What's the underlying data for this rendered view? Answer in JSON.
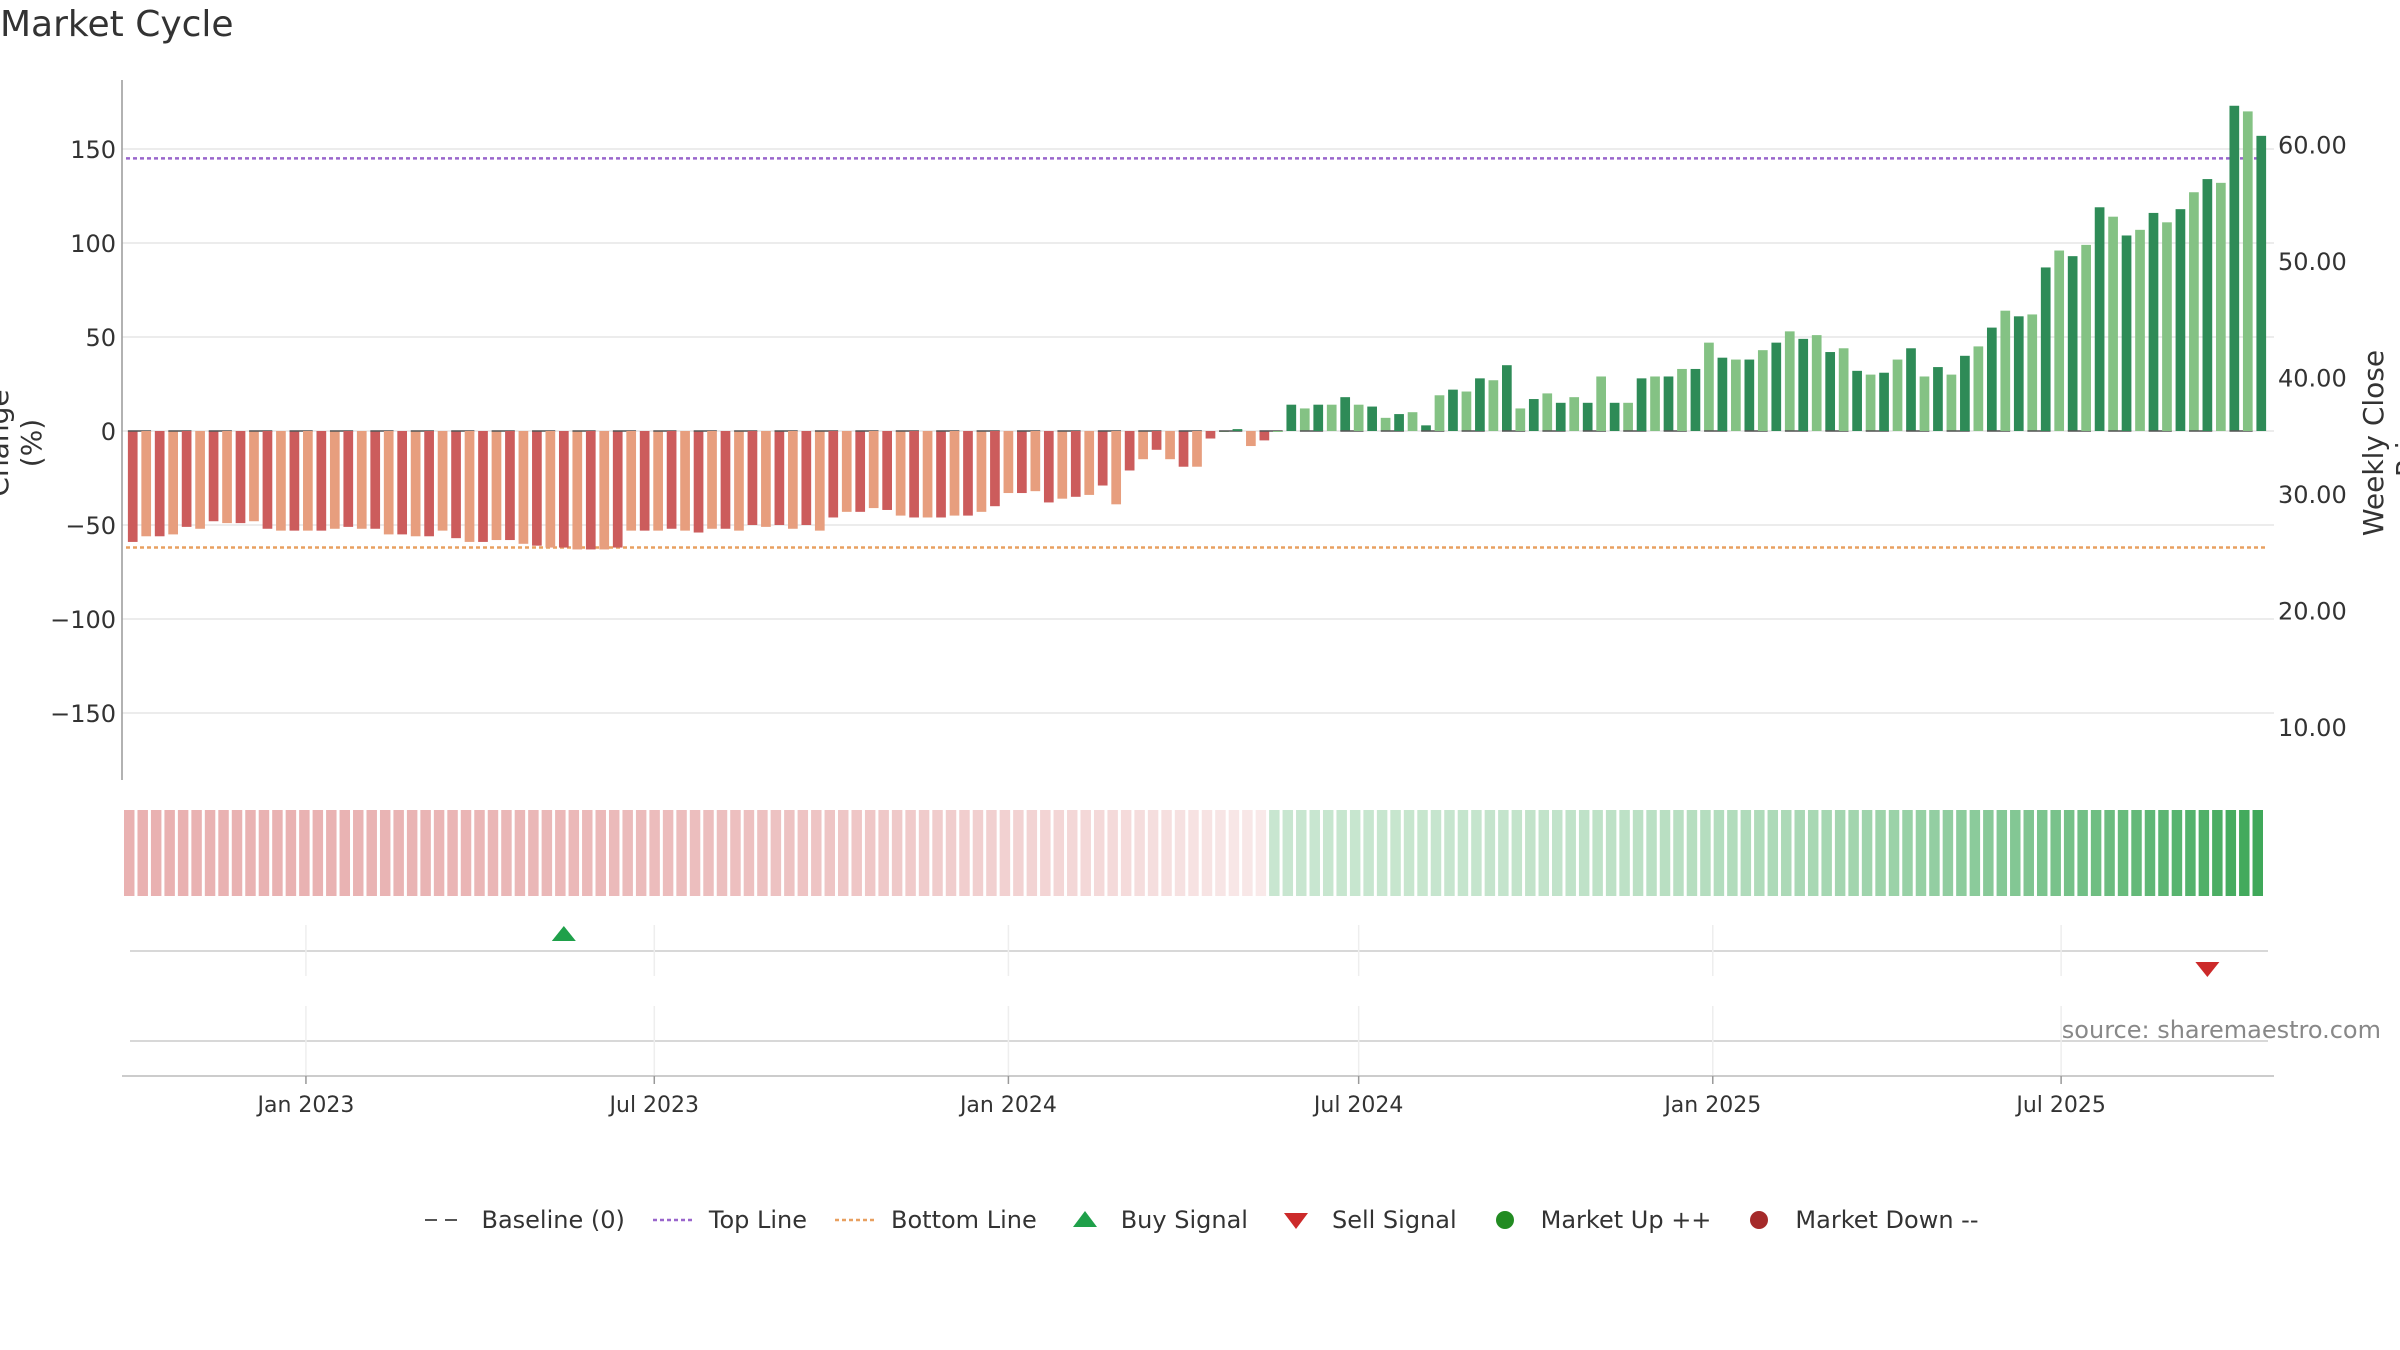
{
  "title": "Market Cycle",
  "source": "source: sharemaestro.com",
  "chart_data": {
    "type": "bar",
    "title": "Market Cycle",
    "ylabel": "Change (%)",
    "y2label": "Weekly Close Price",
    "ylim": [
      -190,
      185
    ],
    "y2lim": [
      4.64,
      64.12
    ],
    "yticks": [
      150,
      100,
      50,
      0,
      -50,
      -100,
      -150
    ],
    "ytick_labels": [
      "150",
      "100",
      "50",
      "0",
      "−50",
      "−100",
      "−150"
    ],
    "y2ticks": [
      60,
      50,
      40,
      30,
      20,
      10
    ],
    "y2tick_labels": [
      "60.00",
      "50.00",
      "40.00",
      "30.00",
      "20.00",
      "10.00"
    ],
    "x_start": "2022-10-03",
    "x_interval_days": 7,
    "xticks": [
      "2023-01-01",
      "2023-07-01",
      "2024-01-01",
      "2024-07-01",
      "2025-01-01",
      "2025-07-01"
    ],
    "xtick_labels": [
      "Jan 2023",
      "Jul 2023",
      "Jan 2024",
      "Jul 2024",
      "Jan 2025",
      "Jul 2025"
    ],
    "top_line": 145,
    "bottom_line": -62,
    "baseline": 0,
    "values": [
      -59,
      -56,
      -56,
      -55,
      -51,
      -52,
      -48,
      -49,
      -49,
      -48,
      -52,
      -53,
      -53,
      -53,
      -53,
      -52,
      -51,
      -52,
      -52,
      -55,
      -55,
      -56,
      -56,
      -53,
      -57,
      -59,
      -59,
      -58,
      -58,
      -60,
      -61,
      -62,
      -62,
      -63,
      -63,
      -63,
      -62,
      -53,
      -53,
      -53,
      -52,
      -53,
      -54,
      -52,
      -52,
      -53,
      -50,
      -51,
      -50,
      -52,
      -50,
      -53,
      -46,
      -43,
      -43,
      -41,
      -42,
      -45,
      -46,
      -46,
      -46,
      -45,
      -45,
      -43,
      -40,
      -33,
      -33,
      -32,
      -38,
      -36,
      -35,
      -34,
      -29,
      -39,
      -21,
      -15,
      -10,
      -15,
      -19,
      -19,
      -4,
      0,
      1,
      -8,
      -5,
      0,
      14,
      12,
      14,
      14,
      18,
      14,
      13,
      7,
      9,
      10,
      3,
      19,
      22,
      21,
      28,
      27,
      35,
      12,
      17,
      20,
      15,
      18,
      15,
      29,
      15,
      15,
      28,
      29,
      29,
      33,
      33,
      47,
      39,
      38,
      38,
      43,
      47,
      53,
      49,
      51,
      42,
      44,
      32,
      30,
      31,
      38,
      44,
      29,
      34,
      30,
      40,
      45,
      55,
      64,
      61,
      62,
      87,
      96,
      93,
      99,
      119,
      114,
      104,
      107,
      116,
      111,
      118,
      127,
      134,
      132,
      173,
      170,
      157
    ],
    "buy_signals": [
      "2023-05-15"
    ],
    "sell_signals": [
      "2025-09-15"
    ],
    "band_direction": "red fading to neutral near Jun 2024, then green intensifying to the end",
    "colors": {
      "down_dark": "#cc5c5c",
      "down_light": "#e79e7e",
      "up_dark": "#2e8b57",
      "up_light": "#84c284",
      "top_line": "#9966cc",
      "bottom_line": "#e8a060",
      "buy": "#1fa04a",
      "sell": "#cc2a2a",
      "market_up": "#228b22",
      "market_down": "#a52a2a"
    }
  },
  "legend": [
    {
      "label": "Baseline (0)",
      "symbol": "dash"
    },
    {
      "label": "Top Line",
      "symbol": "dot-purple"
    },
    {
      "label": "Bottom Line",
      "symbol": "dot-orange"
    },
    {
      "label": "Buy Signal",
      "symbol": "triangle-up"
    },
    {
      "label": "Sell Signal",
      "symbol": "triangle-down"
    },
    {
      "label": "Market Up ++",
      "symbol": "circle-green"
    },
    {
      "label": "Market Down --",
      "symbol": "circle-red"
    }
  ]
}
